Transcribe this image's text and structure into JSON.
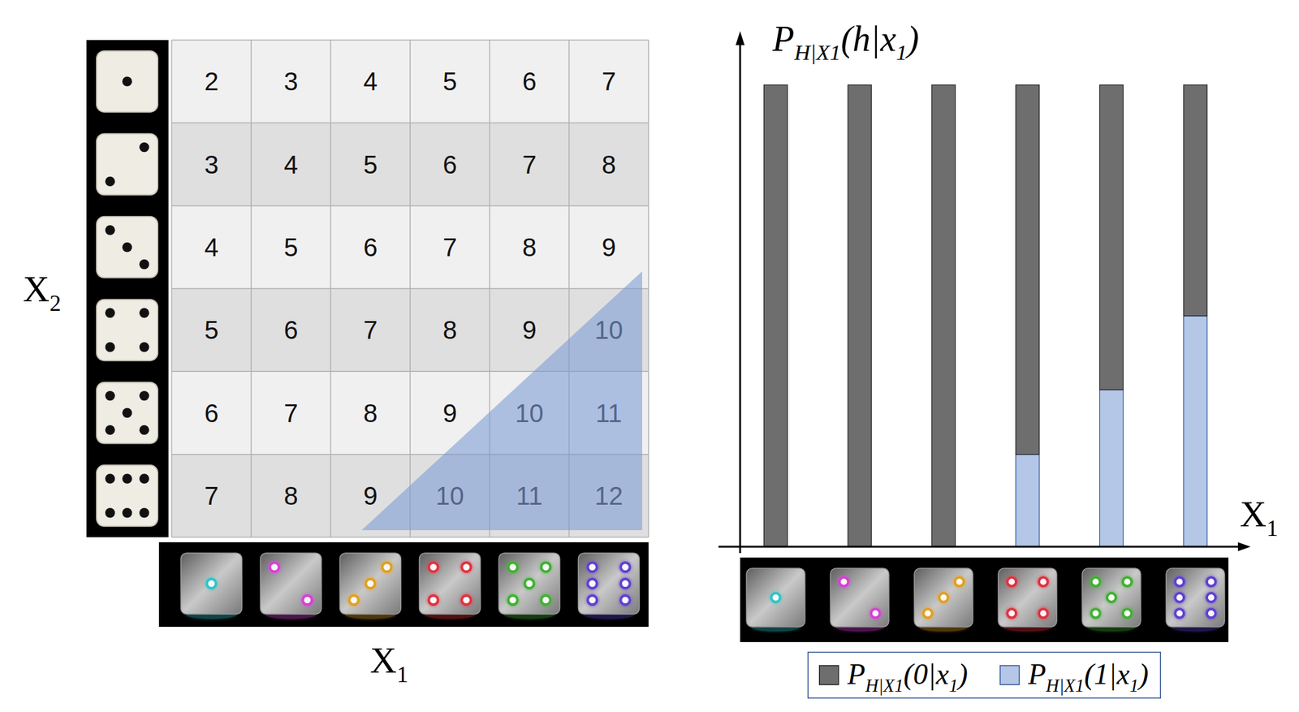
{
  "table": {
    "x_label": [
      {
        "text": "X",
        "sub": "1"
      }
    ],
    "y_label": [
      {
        "text": "X",
        "sub": "2"
      }
    ],
    "x_values": [
      1,
      2,
      3,
      4,
      5,
      6
    ],
    "y_values": [
      1,
      2,
      3,
      4,
      5,
      6
    ],
    "rows": [
      [
        2,
        3,
        4,
        5,
        6,
        7
      ],
      [
        3,
        4,
        5,
        6,
        7,
        8
      ],
      [
        4,
        5,
        6,
        7,
        8,
        9
      ],
      [
        5,
        6,
        7,
        8,
        9,
        10
      ],
      [
        6,
        7,
        8,
        9,
        10,
        11
      ],
      [
        7,
        8,
        9,
        10,
        11,
        12
      ]
    ]
  },
  "chart_data": {
    "type": "bar",
    "stacked": true,
    "tick_labels": false,
    "legend": "bottom",
    "y_label": [
      {
        "text": "P",
        "sub": "H|X1"
      },
      {
        "text": "(h|x",
        "sub": "1"
      },
      {
        "text": ")"
      }
    ],
    "x_label": [
      {
        "text": "X",
        "sub": "1"
      }
    ],
    "categories": [
      1,
      2,
      3,
      4,
      5,
      6
    ],
    "ylim": [
      0,
      1.1
    ],
    "series": [
      {
        "name": [
          {
            "text": "P",
            "sub": "H|X1"
          },
          {
            "text": "(0|x",
            "sub": "1"
          },
          {
            "text": ")"
          }
        ],
        "color": "#6e6e6e",
        "values": [
          1,
          1,
          1,
          0.8,
          0.66,
          0.5
        ]
      },
      {
        "name": [
          {
            "text": "P",
            "sub": "H|X1"
          },
          {
            "text": "(1|x",
            "sub": "1"
          },
          {
            "text": ")"
          }
        ],
        "color": "#b4c7e7",
        "values": [
          0,
          0,
          0,
          0.2,
          0.34,
          0.5
        ]
      }
    ]
  }
}
